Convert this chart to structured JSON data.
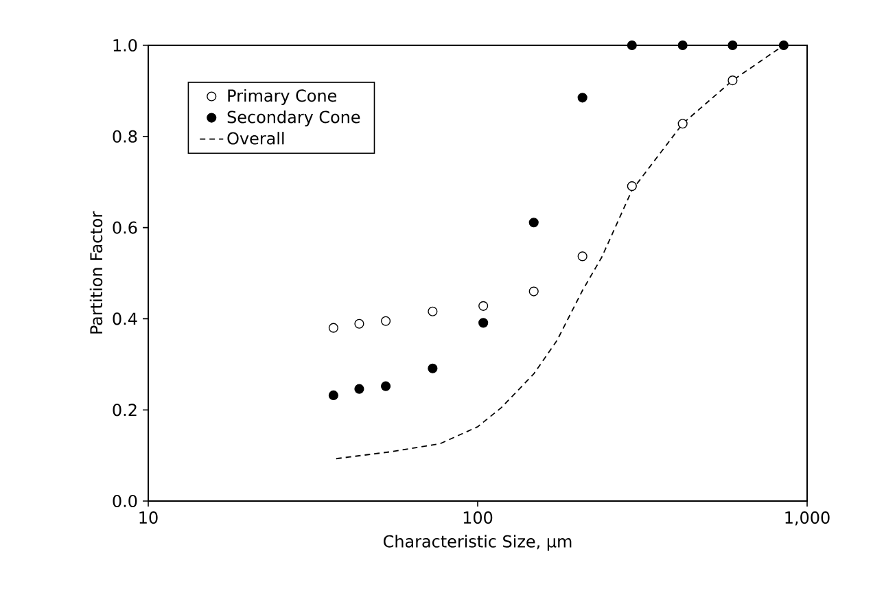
{
  "chart_data": {
    "type": "scatter",
    "xlabel": "Characteristic Size, µm",
    "ylabel": "Partition Factor",
    "log": "x",
    "xlim": [
      10,
      1000
    ],
    "ylim": [
      0,
      1
    ],
    "xticks": [
      10,
      100,
      {
        "value": 1000,
        "label": "1,000"
      }
    ],
    "yticks": [
      {
        "value": 0,
        "label": "0.0"
      },
      0.2,
      0.4,
      0.6,
      0.8,
      {
        "value": 1,
        "label": "1.0"
      }
    ],
    "grid": false,
    "legend": "top left",
    "series": [
      {
        "name": "Primary Cone",
        "marker": "circle",
        "color": "#ffffff",
        "x": [
          36.5,
          43.7,
          52.6,
          73,
          104,
          148,
          208,
          294,
          419,
          594
        ],
        "values": [
          0.38,
          0.389,
          0.395,
          0.416,
          0.428,
          0.46,
          0.537,
          0.691,
          0.828,
          0.923
        ]
      },
      {
        "name": "Secondary Cone",
        "marker": "circle",
        "color": "#000000",
        "x": [
          36.5,
          43.7,
          52.6,
          73,
          104,
          148,
          208,
          294,
          419,
          594,
          849
        ],
        "values": [
          0.232,
          0.246,
          0.252,
          0.291,
          0.391,
          0.611,
          0.885,
          1.0,
          1.0,
          1.0,
          1.0
        ]
      },
      {
        "name": "Overall",
        "type": "line",
        "line_style": "dashed",
        "marker": "none",
        "color": "#000000",
        "x": [
          37.2,
          54.3,
          77,
          100,
          118,
          148,
          174,
          208,
          238,
          294,
          419,
          594,
          849
        ],
        "values": [
          0.093,
          0.108,
          0.126,
          0.163,
          0.205,
          0.279,
          0.352,
          0.462,
          0.535,
          0.682,
          0.828,
          0.923,
          1.0
        ]
      }
    ]
  }
}
